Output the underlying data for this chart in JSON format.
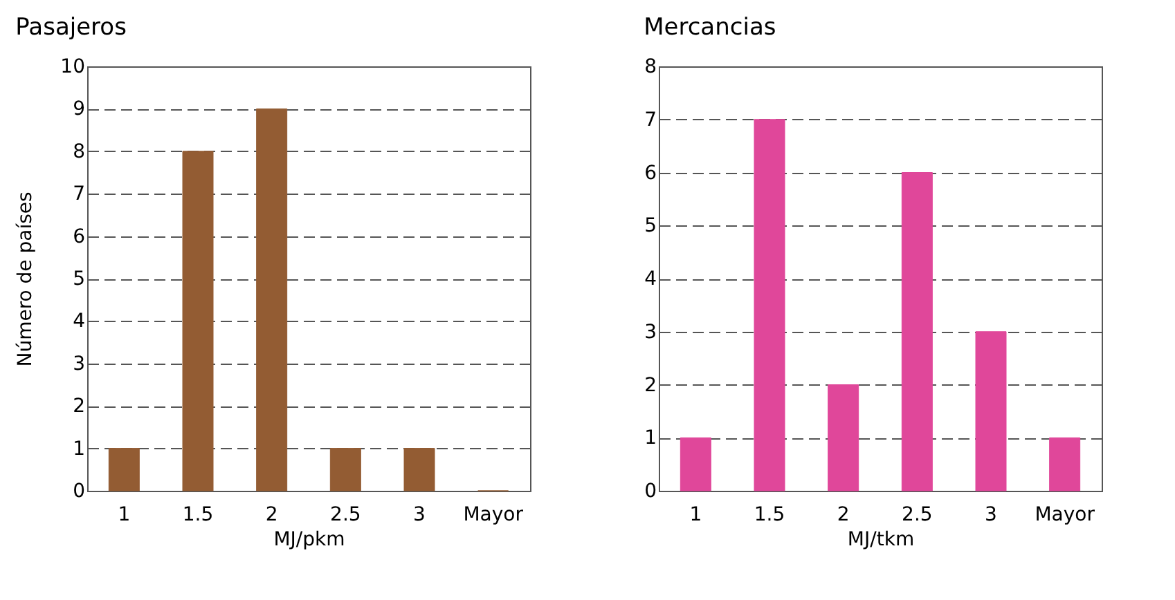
{
  "chart_data": [
    {
      "type": "bar",
      "title": "Pasajeros",
      "ylabel": "Número de países",
      "xlabel": "MJ/pkm",
      "categories": [
        "1",
        "1.5",
        "2",
        "2.5",
        "3",
        "Mayor"
      ],
      "values": [
        1,
        8,
        9,
        1,
        1,
        0
      ],
      "color": "#935c33",
      "ylim": [
        0,
        10
      ],
      "yticks": [
        0,
        1,
        2,
        3,
        4,
        5,
        6,
        7,
        8,
        9,
        10
      ],
      "grid": "y",
      "line_style": "dashed"
    },
    {
      "type": "bar",
      "title": "Mercancias",
      "xlabel": "MJ/tkm",
      "categories": [
        "1",
        "1.5",
        "2",
        "2.5",
        "3",
        "Mayor"
      ],
      "values": [
        1,
        7,
        2,
        6,
        3,
        1
      ],
      "color": "#e0479a",
      "ylim": [
        0,
        8
      ],
      "yticks": [
        0,
        1,
        2,
        3,
        4,
        5,
        6,
        7,
        8
      ],
      "grid": "y",
      "line_style": "dashed"
    }
  ]
}
